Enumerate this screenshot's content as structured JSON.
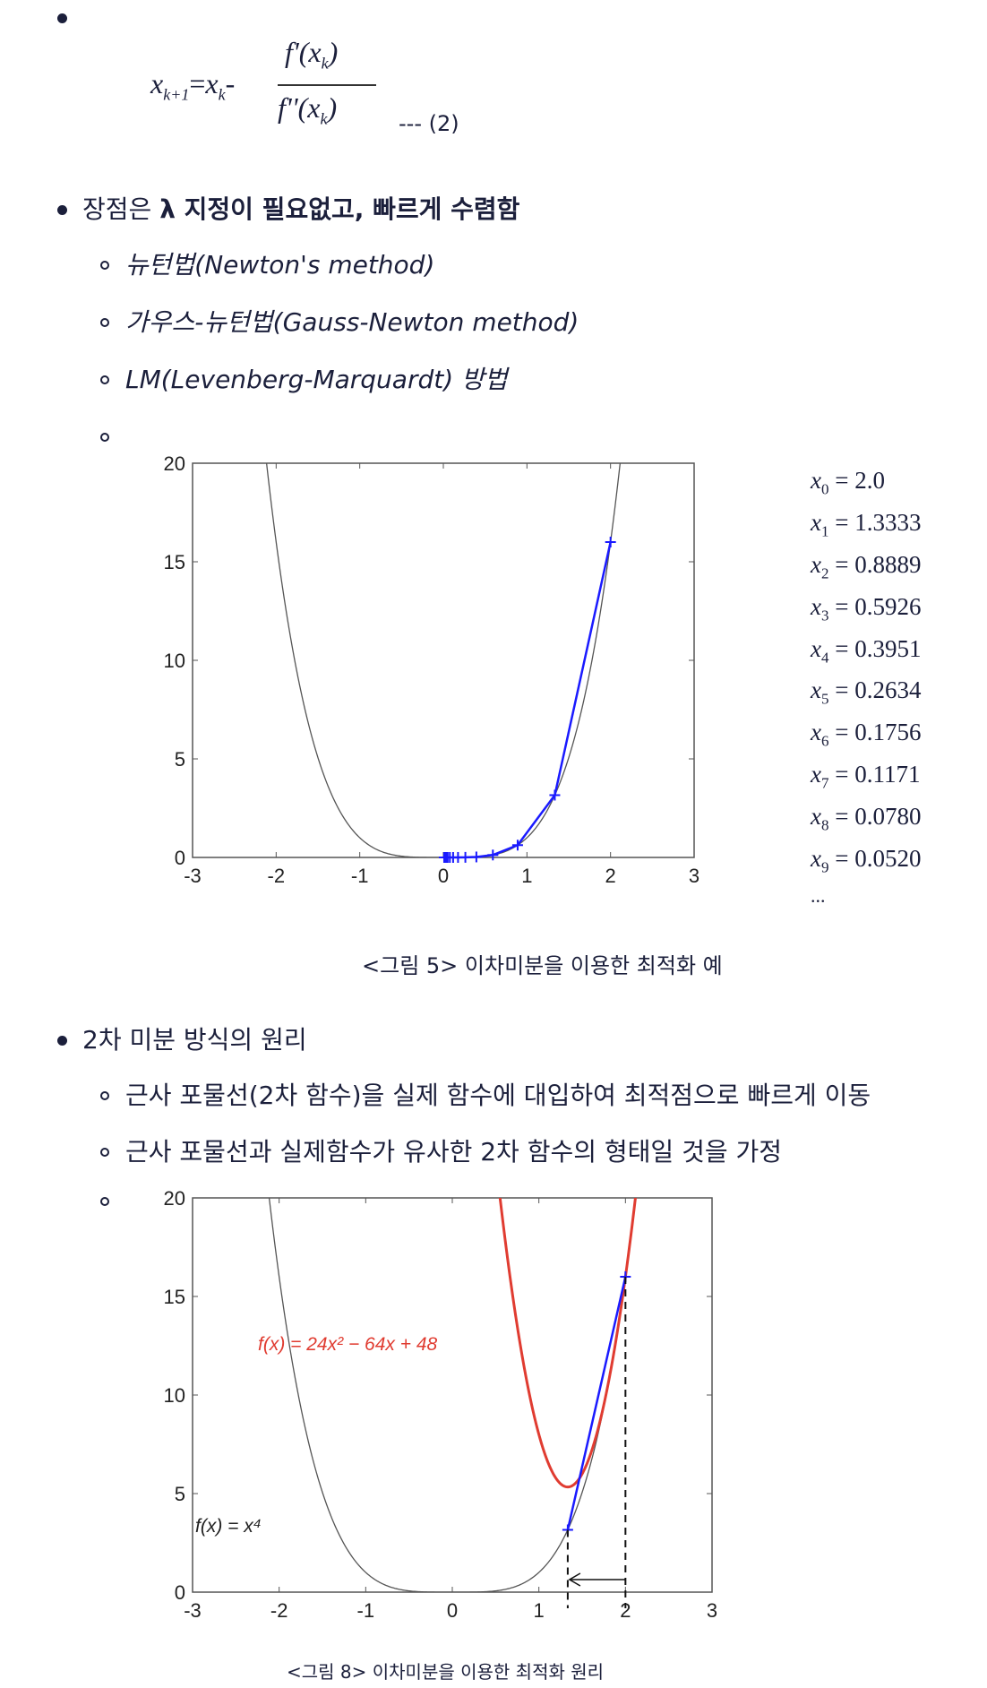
{
  "formula": {
    "lhs": "x",
    "lhs_sub": "k+1",
    "eq": "=",
    "rhs_x": "x",
    "rhs_sub": "k",
    "minus": "-",
    "numerator": "f'(x",
    "numerator_sub": "k",
    "numerator_close": ")",
    "denominator": "f''(x",
    "denominator_sub": "k",
    "denominator_close": ")",
    "eq_number": "--- (2)"
  },
  "bullets": {
    "advantage_prefix": "장점은 ",
    "advantage_bold": "λ 지정이 필요없고, 빠르게 수렴함",
    "methods": [
      "뉴턴법(Newton's method)",
      "가우스-뉴턴법(Gauss-Newton method)",
      "LM(Levenberg-Marquardt) 방법"
    ],
    "principle": "2차 미분 방식의 원리",
    "principle_items": [
      "근사 포물선(2차 함수)을 실제 함수에 대입하여 최적점으로 빠르게 이동",
      "근사 포물선과 실제함수가 유사한 2차 함수의 형태일 것을 가정"
    ]
  },
  "figure5": {
    "caption": "<그림 5> 이차미분을 이용한 최적화 예",
    "iterates": [
      {
        "var": "x",
        "sub": "0",
        "value": "= 2.0"
      },
      {
        "var": "x",
        "sub": "1",
        "value": "= 1.3333"
      },
      {
        "var": "x",
        "sub": "2",
        "value": "= 0.8889"
      },
      {
        "var": "x",
        "sub": "3",
        "value": "= 0.5926"
      },
      {
        "var": "x",
        "sub": "4",
        "value": "= 0.3951"
      },
      {
        "var": "x",
        "sub": "5",
        "value": "= 0.2634"
      },
      {
        "var": "x",
        "sub": "6",
        "value": "= 0.1756"
      },
      {
        "var": "x",
        "sub": "7",
        "value": "= 0.1171"
      },
      {
        "var": "x",
        "sub": "8",
        "value": "= 0.0780"
      },
      {
        "var": "x",
        "sub": "9",
        "value": "= 0.0520"
      }
    ],
    "ellipsis": "...",
    "chart_data": {
      "type": "line",
      "xlim": [
        -3,
        3
      ],
      "ylim": [
        0,
        20
      ],
      "xticks": [
        "-3",
        "-2",
        "-1",
        "0",
        "1",
        "2",
        "3"
      ],
      "yticks": [
        "0",
        "5",
        "10",
        "15",
        "20"
      ],
      "curve": "x^4",
      "curve_color": "#555555",
      "iterate_color": "#1a1aff",
      "iterate_x": [
        2.0,
        1.3333,
        0.8889,
        0.5926,
        0.3951,
        0.2634,
        0.1756,
        0.1171,
        0.078,
        0.052,
        0.0347,
        0.0231,
        0.0154,
        0.0103
      ]
    }
  },
  "figure8": {
    "caption": "<그림 8> 이차미분을 이용한 최적화 원리",
    "red_label": "f(x) = 24x² − 64x + 48",
    "black_label": "f(x) = x⁴",
    "chart_data": {
      "type": "line",
      "xlim": [
        -3,
        3
      ],
      "ylim": [
        0,
        20
      ],
      "xticks": [
        "-3",
        "-2",
        "-1",
        "0",
        "1",
        "2",
        "3"
      ],
      "yticks": [
        "0",
        "5",
        "10",
        "15",
        "20"
      ],
      "curve_color": "#555555",
      "parabola_color": "#e03c31",
      "step_color": "#1a1aff",
      "x_start": 2.0,
      "x_next": 1.3333
    }
  }
}
